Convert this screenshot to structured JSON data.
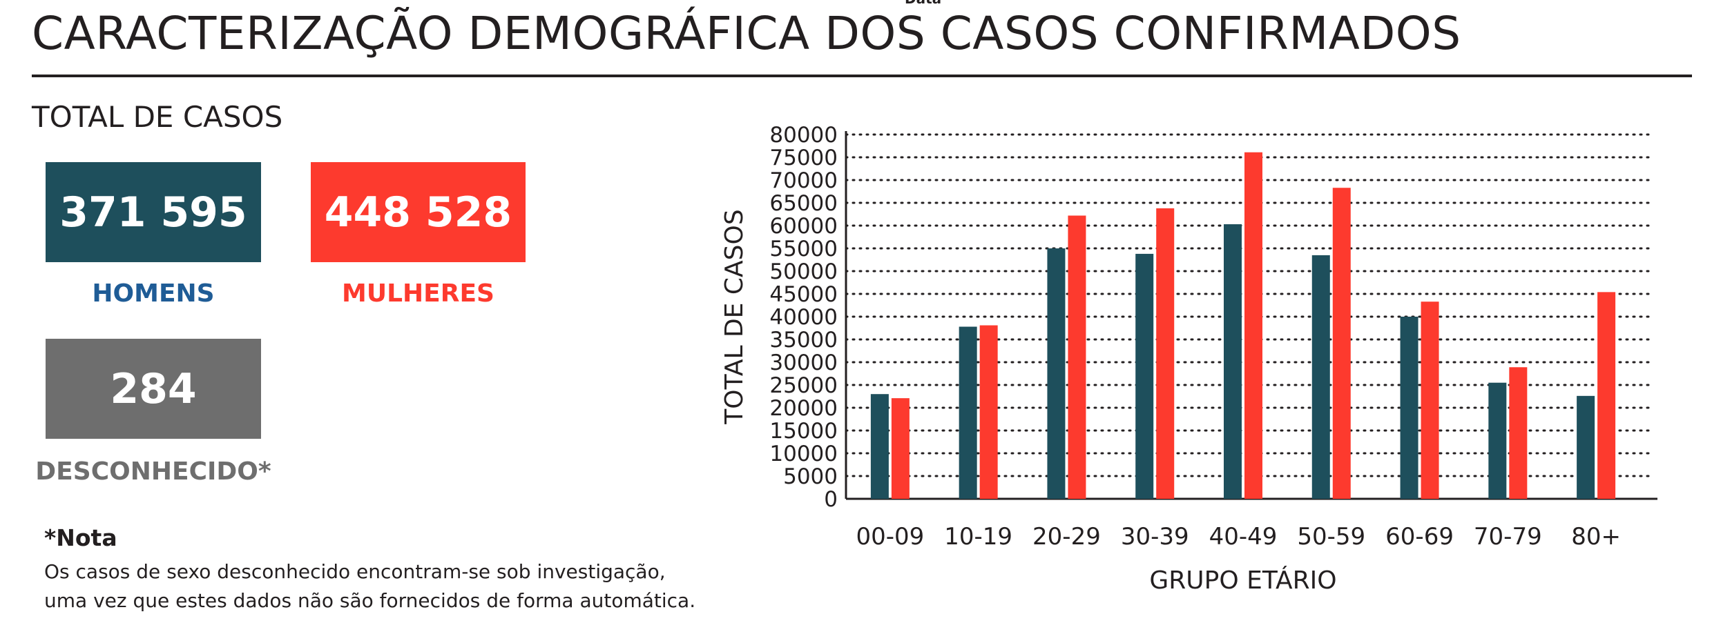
{
  "header": {
    "cut_text": "Data",
    "title": "CARACTERIZAÇÃO DEMOGRÁFICA DOS CASOS CONFIRMADOS"
  },
  "totals": {
    "section_title": "TOTAL DE CASOS",
    "men": {
      "value": "371 595",
      "label": "HOMENS"
    },
    "women": {
      "value": "448 528",
      "label": "MULHERES"
    },
    "unknown": {
      "value": "284",
      "label": "DESCONHECIDO*"
    }
  },
  "note": {
    "title": "*Nota",
    "line1": "Os casos de sexo desconhecido encontram-se sob investigação,",
    "line2": "uma vez que estes dados não são fornecidos de forma automática."
  },
  "colors": {
    "men": "#1e4f5c",
    "women": "#fd3a2e",
    "unknown": "#6e6e6e",
    "men_label": "#1f5c96"
  },
  "chart_data": {
    "type": "bar",
    "categories": [
      "00-09",
      "10-19",
      "20-29",
      "30-39",
      "40-49",
      "50-59",
      "60-69",
      "70-79",
      "80+"
    ],
    "series": [
      {
        "color": "#1e4f5c",
        "values": [
          23000,
          37800,
          55000,
          53800,
          60300,
          53500,
          40000,
          25500,
          22600
        ]
      },
      {
        "color": "#fd3a2e",
        "values": [
          22100,
          38100,
          62200,
          63800,
          76100,
          68300,
          43300,
          28900,
          45400
        ]
      }
    ],
    "xlabel": "GRUPO ETÁRIO",
    "ylabel": "TOTAL DE CASOS",
    "ylim": [
      0,
      80000
    ],
    "yticks": [
      0,
      5000,
      10000,
      15000,
      20000,
      25000,
      30000,
      35000,
      40000,
      45000,
      50000,
      55000,
      60000,
      65000,
      70000,
      75000,
      80000
    ],
    "grid": "dotted horizontal"
  }
}
